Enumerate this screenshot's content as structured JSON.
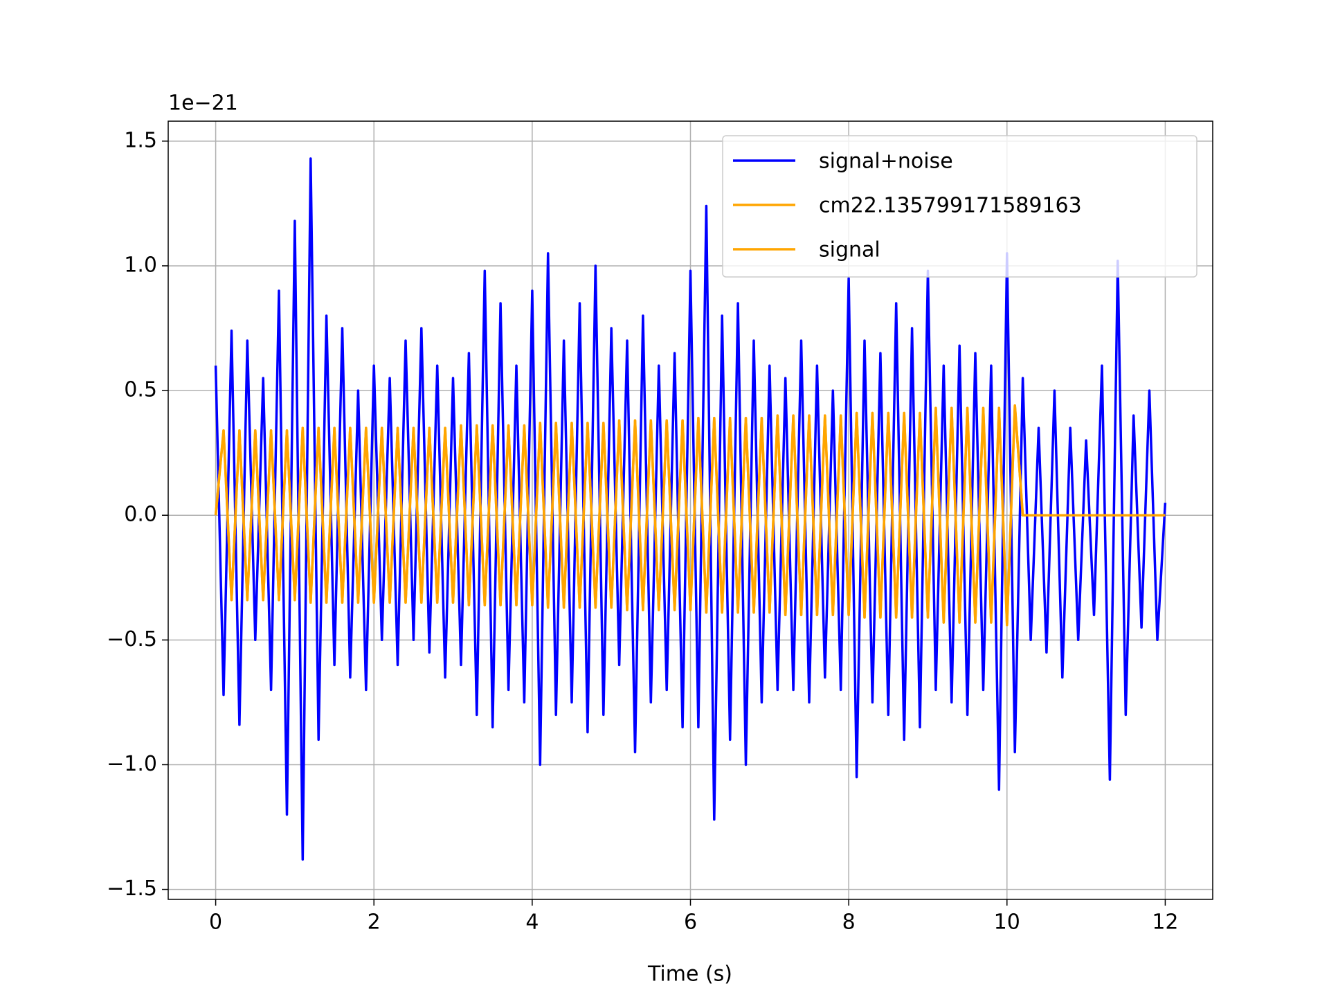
{
  "chart_data": {
    "type": "line",
    "x_label": "Time (s)",
    "y_offset_label": "1e−21",
    "x": [
      0.0,
      0.1,
      0.2,
      0.3,
      0.4,
      0.5,
      0.6,
      0.7,
      0.8,
      0.9,
      1.0,
      1.1,
      1.2,
      1.3,
      1.4,
      1.5,
      1.6,
      1.7,
      1.8,
      1.9,
      2.0,
      2.1,
      2.2,
      2.3,
      2.4,
      2.5,
      2.6,
      2.7,
      2.8,
      2.9,
      3.0,
      3.1,
      3.2,
      3.3,
      3.4,
      3.5,
      3.6,
      3.7,
      3.8,
      3.9,
      4.0,
      4.1,
      4.2,
      4.3,
      4.4,
      4.5,
      4.6,
      4.7,
      4.8,
      4.9,
      5.0,
      5.1,
      5.2,
      5.3,
      5.4,
      5.5,
      5.6,
      5.7,
      5.8,
      5.9,
      6.0,
      6.1,
      6.2,
      6.3,
      6.4,
      6.5,
      6.6,
      6.7,
      6.8,
      6.9,
      7.0,
      7.1,
      7.2,
      7.3,
      7.4,
      7.5,
      7.6,
      7.7,
      7.8,
      7.9,
      8.0,
      8.1,
      8.2,
      8.3,
      8.4,
      8.5,
      8.6,
      8.7,
      8.8,
      8.9,
      9.0,
      9.1,
      9.2,
      9.3,
      9.4,
      9.5,
      9.6,
      9.7,
      9.8,
      9.9,
      10.0,
      10.1,
      10.2,
      10.3,
      10.4,
      10.5,
      10.6,
      10.7,
      10.8,
      10.9,
      11.0,
      11.1,
      11.2,
      11.3,
      11.4,
      11.5,
      11.6,
      11.7,
      11.8,
      11.9,
      12.0
    ],
    "series": [
      {
        "name": "signal+noise",
        "color": "#0000ff",
        "values": [
          0.6,
          -0.72,
          0.74,
          -0.84,
          0.7,
          -0.5,
          0.55,
          -0.7,
          0.9,
          -1.2,
          1.18,
          -1.38,
          1.43,
          -0.9,
          0.8,
          -0.6,
          0.75,
          -0.65,
          0.5,
          -0.7,
          0.6,
          -0.5,
          0.55,
          -0.6,
          0.7,
          -0.5,
          0.75,
          -0.55,
          0.6,
          -0.65,
          0.55,
          -0.6,
          0.65,
          -0.8,
          0.98,
          -0.85,
          0.85,
          -0.7,
          0.6,
          -0.75,
          0.9,
          -1.0,
          1.05,
          -0.8,
          0.7,
          -0.75,
          0.85,
          -0.87,
          1.0,
          -0.8,
          0.75,
          -0.6,
          0.7,
          -0.95,
          0.8,
          -0.75,
          0.6,
          -0.7,
          0.65,
          -0.85,
          0.98,
          -0.85,
          1.24,
          -1.22,
          0.8,
          -0.9,
          0.85,
          -1.0,
          0.7,
          -0.75,
          0.6,
          -0.7,
          0.55,
          -0.7,
          0.7,
          -0.75,
          0.6,
          -0.65,
          0.5,
          -0.7,
          0.95,
          -1.05,
          0.7,
          -0.75,
          0.65,
          -0.8,
          0.85,
          -0.9,
          0.75,
          -0.85,
          0.98,
          -0.7,
          0.6,
          -0.75,
          0.68,
          -0.8,
          0.65,
          -0.7,
          0.6,
          -1.1,
          1.05,
          -0.95,
          0.55,
          -0.5,
          0.35,
          -0.55,
          0.5,
          -0.65,
          0.35,
          -0.5,
          0.3,
          -0.4,
          0.6,
          -1.06,
          1.02,
          -0.8,
          0.4,
          -0.45,
          0.5,
          -0.5,
          0.05
        ]
      },
      {
        "name": "cm22.135799171589163",
        "color": "#ffa500",
        "values": [
          0,
          0.34,
          -0.34,
          0.34,
          -0.34,
          0.34,
          -0.34,
          0.34,
          -0.34,
          0.34,
          -0.34,
          0.35,
          -0.35,
          0.35,
          -0.35,
          0.35,
          -0.35,
          0.35,
          -0.35,
          0.35,
          -0.35,
          0.35,
          -0.35,
          0.35,
          -0.35,
          0.35,
          -0.35,
          0.35,
          -0.35,
          0.35,
          -0.35,
          0.36,
          -0.36,
          0.36,
          -0.36,
          0.36,
          -0.36,
          0.36,
          -0.36,
          0.36,
          -0.36,
          0.37,
          -0.37,
          0.37,
          -0.37,
          0.37,
          -0.37,
          0.37,
          -0.37,
          0.37,
          -0.37,
          0.38,
          -0.38,
          0.38,
          -0.38,
          0.38,
          -0.38,
          0.38,
          -0.38,
          0.38,
          -0.38,
          0.39,
          -0.39,
          0.39,
          -0.39,
          0.39,
          -0.39,
          0.39,
          -0.39,
          0.39,
          -0.39,
          0.4,
          -0.4,
          0.4,
          -0.4,
          0.4,
          -0.4,
          0.4,
          -0.4,
          0.4,
          -0.4,
          0.41,
          -0.41,
          0.41,
          -0.41,
          0.41,
          -0.41,
          0.41,
          -0.41,
          0.41,
          -0.41,
          0.43,
          -0.43,
          0.43,
          -0.43,
          0.43,
          -0.43,
          0.43,
          -0.43,
          0.43,
          -0.44,
          0.44,
          0,
          0,
          0,
          0,
          0,
          0,
          0,
          0,
          0,
          0,
          0,
          0,
          0,
          0,
          0,
          0,
          0,
          0,
          0
        ]
      },
      {
        "name": "signal",
        "color": "#ffa500",
        "values": [
          0,
          0.34,
          -0.34,
          0.34,
          -0.34,
          0.34,
          -0.34,
          0.34,
          -0.34,
          0.34,
          -0.34,
          0.35,
          -0.35,
          0.35,
          -0.35,
          0.35,
          -0.35,
          0.35,
          -0.35,
          0.35,
          -0.35,
          0.35,
          -0.35,
          0.35,
          -0.35,
          0.35,
          -0.35,
          0.35,
          -0.35,
          0.35,
          -0.35,
          0.36,
          -0.36,
          0.36,
          -0.36,
          0.36,
          -0.36,
          0.36,
          -0.36,
          0.36,
          -0.36,
          0.37,
          -0.37,
          0.37,
          -0.37,
          0.37,
          -0.37,
          0.37,
          -0.37,
          0.37,
          -0.37,
          0.38,
          -0.38,
          0.38,
          -0.38,
          0.38,
          -0.38,
          0.38,
          -0.38,
          0.38,
          -0.38,
          0.39,
          -0.39,
          0.39,
          -0.39,
          0.39,
          -0.39,
          0.39,
          -0.39,
          0.39,
          -0.39,
          0.4,
          -0.4,
          0.4,
          -0.4,
          0.4,
          -0.4,
          0.4,
          -0.4,
          0.4,
          -0.4,
          0.41,
          -0.41,
          0.41,
          -0.41,
          0.41,
          -0.41,
          0.41,
          -0.41,
          0.41,
          -0.41,
          0.43,
          -0.43,
          0.43,
          -0.43,
          0.43,
          -0.43,
          0.43,
          -0.43,
          0.43,
          -0.44,
          0.44,
          0,
          0,
          0,
          0,
          0,
          0,
          0,
          0,
          0,
          0,
          0,
          0,
          0,
          0,
          0,
          0,
          0,
          0,
          0
        ]
      }
    ],
    "xlim": [
      -0.6,
      12.6
    ],
    "xticks": [
      0,
      2,
      4,
      6,
      8,
      10,
      12
    ],
    "ylim": [
      -1.54,
      1.58
    ],
    "yticks": [
      {
        "value": -1.5,
        "label": "−1.5"
      },
      {
        "value": -1.0,
        "label": "−1.0"
      },
      {
        "value": -0.5,
        "label": "−0.5"
      },
      {
        "value": 0,
        "label": "0.0"
      },
      {
        "value": 0.5,
        "label": "0.5"
      },
      {
        "value": 1.0,
        "label": "1.0"
      },
      {
        "value": 1.5,
        "label": "1.5"
      }
    ],
    "grid": true,
    "legend": "upper right"
  }
}
